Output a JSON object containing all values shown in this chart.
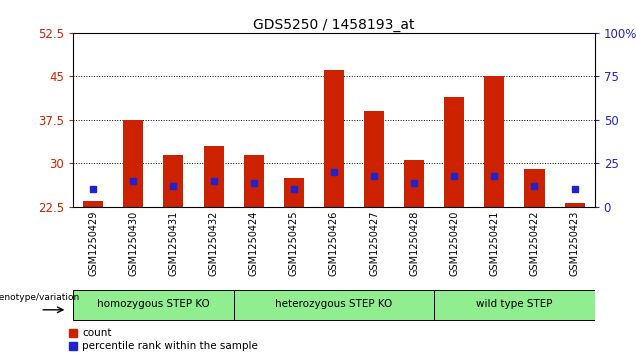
{
  "title": "GDS5250 / 1458193_at",
  "samples": [
    "GSM1250429",
    "GSM1250430",
    "GSM1250431",
    "GSM1250432",
    "GSM1250424",
    "GSM1250425",
    "GSM1250426",
    "GSM1250427",
    "GSM1250428",
    "GSM1250420",
    "GSM1250421",
    "GSM1250422",
    "GSM1250423"
  ],
  "red_values": [
    23.5,
    37.5,
    31.5,
    33.0,
    31.5,
    27.5,
    46.0,
    39.0,
    30.5,
    41.5,
    45.0,
    29.0,
    23.2
  ],
  "blue_percentile": [
    10,
    15,
    12,
    15,
    14,
    10,
    20,
    18,
    14,
    18,
    18,
    12,
    10
  ],
  "groups": [
    {
      "label": "homozygous STEP KO",
      "start": 0,
      "end": 4
    },
    {
      "label": "heterozygous STEP KO",
      "start": 4,
      "end": 9
    },
    {
      "label": "wild type STEP",
      "start": 9,
      "end": 13
    }
  ],
  "ylim_left": [
    22.5,
    52.5
  ],
  "ylim_right": [
    0,
    100
  ],
  "yticks_left": [
    22.5,
    30,
    37.5,
    45,
    52.5
  ],
  "yticks_right": [
    0,
    25,
    50,
    75,
    100
  ],
  "bar_color": "#cc2200",
  "dot_color": "#2222cc",
  "title_fontsize": 10,
  "axis_label_color_left": "#cc2200",
  "axis_label_color_right": "#2222cc",
  "green_color": "#90ee90",
  "gray_color": "#c8c8c8"
}
